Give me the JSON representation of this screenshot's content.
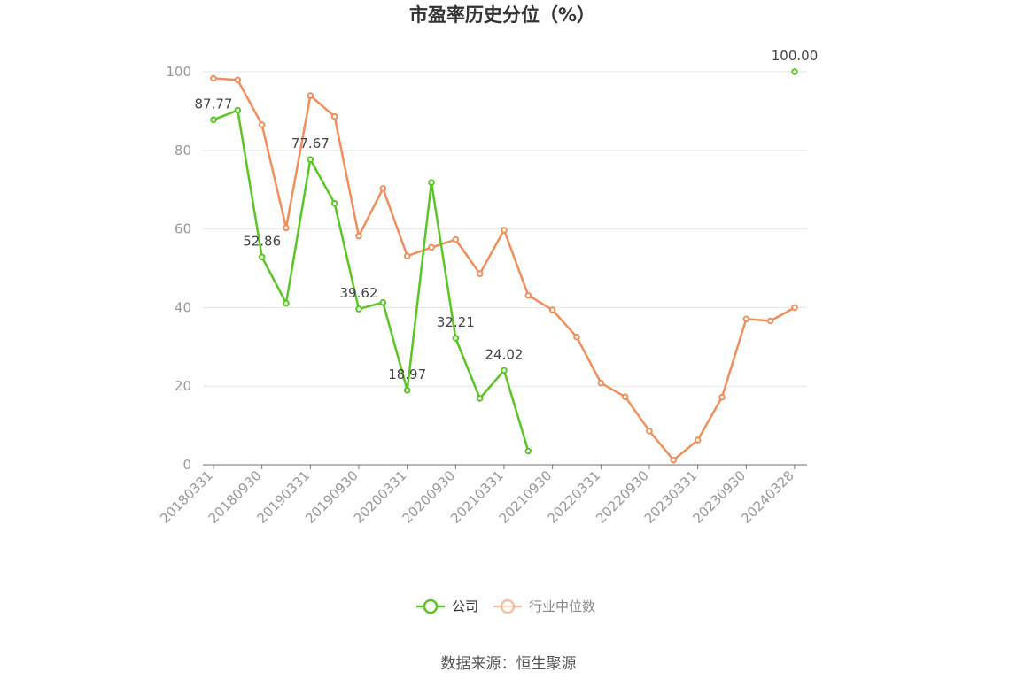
{
  "chart_data": {
    "type": "line",
    "title": "市盈率历史分位（%）",
    "source": "数据来源：恒生聚源",
    "ylim": [
      0,
      100
    ],
    "yticks": [
      0,
      20,
      40,
      60,
      80,
      100
    ],
    "x_tick_labels": [
      "20180331",
      "20180930",
      "20190331",
      "20190930",
      "20200331",
      "20200930",
      "20210331",
      "20210930",
      "20220331",
      "20220930",
      "20230331",
      "20230930",
      "20240328"
    ],
    "legend_position": "bottom-center",
    "grid": true,
    "series": [
      {
        "name": "公司",
        "color": "#5ac626",
        "values": [
          87.77,
          90.2,
          52.86,
          41.1,
          77.67,
          66.5,
          39.62,
          41.3,
          18.97,
          71.8,
          32.21,
          16.9,
          24.02,
          3.5,
          null,
          null,
          null,
          null,
          null,
          null,
          null,
          null,
          null,
          null,
          100.0
        ],
        "labels": {
          "0": "87.77",
          "2": "52.86",
          "4": "77.67",
          "6": "39.62",
          "8": "18.97",
          "10": "32.21",
          "12": "24.02",
          "24": "100.00"
        }
      },
      {
        "name": "行业中位数",
        "color": "#f28e5c",
        "values": [
          98.3,
          97.9,
          86.5,
          60.3,
          93.9,
          88.6,
          58.2,
          70.3,
          53.1,
          55.3,
          57.3,
          48.6,
          59.7,
          43.1,
          39.4,
          32.5,
          20.8,
          17.3,
          8.6,
          1.2,
          6.3,
          17.2,
          37.1,
          36.6,
          40.0
        ]
      }
    ]
  }
}
